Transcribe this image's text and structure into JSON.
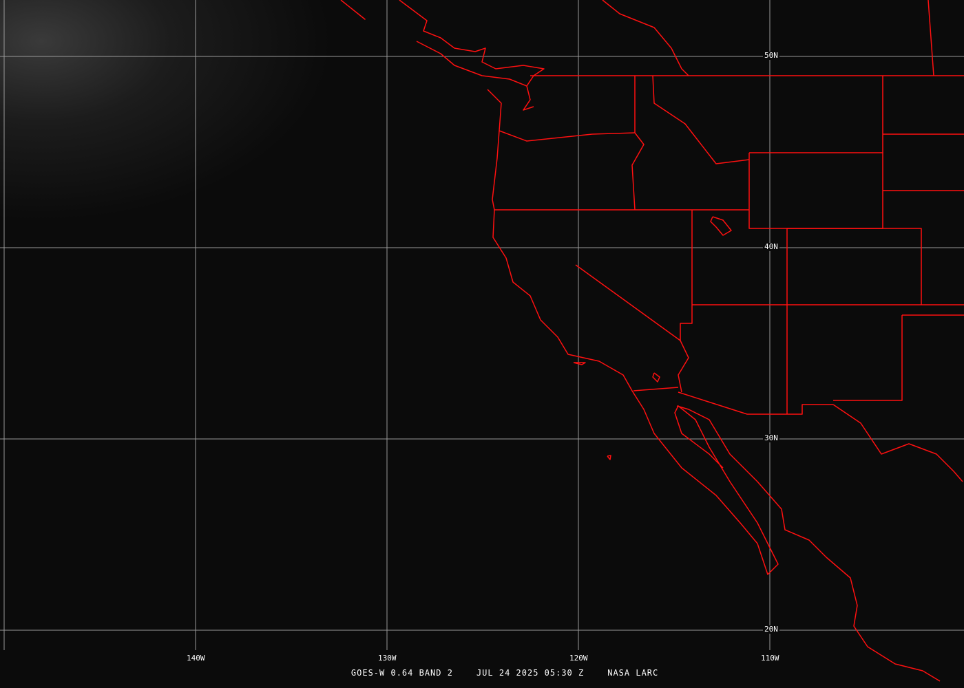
{
  "image": {
    "type": "satellite imagery with map overlay",
    "colors": {
      "background": "#0b0b0b",
      "grid": "#9a9a9a",
      "boundaries": "#ff0000",
      "text": "#ffffff"
    }
  },
  "grid": {
    "latitude_labels": [
      "50N",
      "40N",
      "30N",
      "20N"
    ],
    "longitude_labels": [
      "140W",
      "130W",
      "120W",
      "110W"
    ]
  },
  "caption": {
    "satellite_band": "GOES-W 0.64 BAND 2",
    "datetime": "JUL 24 2025 05:30 Z",
    "source": "NASA LARC"
  }
}
